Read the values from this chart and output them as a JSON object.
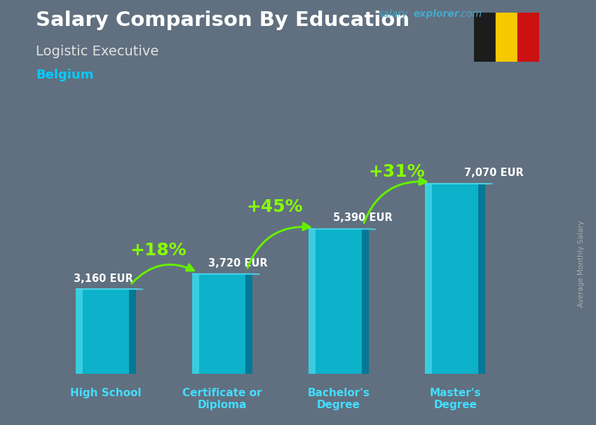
{
  "title": "Salary Comparison By Education",
  "subtitle": "Logistic Executive",
  "country": "Belgium",
  "categories": [
    "High School",
    "Certificate or\nDiploma",
    "Bachelor's\nDegree",
    "Master's\nDegree"
  ],
  "values": [
    3160,
    3720,
    5390,
    7070
  ],
  "value_labels": [
    "3,160 EUR",
    "3,720 EUR",
    "5,390 EUR",
    "7,070 EUR"
  ],
  "pct_labels": [
    "+18%",
    "+45%",
    "+31%"
  ],
  "bar_color_main": "#00bcd4",
  "bar_color_light": "#4dd9ec",
  "bar_color_dark": "#0097a7",
  "bar_color_right": "#006080",
  "bg_color": "#607080",
  "title_color": "#ffffff",
  "subtitle_color": "#e0e0e0",
  "country_color": "#00ccff",
  "value_label_color": "#ffffff",
  "pct_color": "#88ff00",
  "arrow_color": "#66ee00",
  "xlabel_color": "#44ddff",
  "salary_color": "#44aacc",
  "explorer_color": "#44aacc",
  "com_color": "#44aacc",
  "ylabel_text": "Average Monthly Salary",
  "ylabel_color": "#aaaaaa",
  "figsize": [
    8.5,
    6.06
  ],
  "dpi": 100
}
